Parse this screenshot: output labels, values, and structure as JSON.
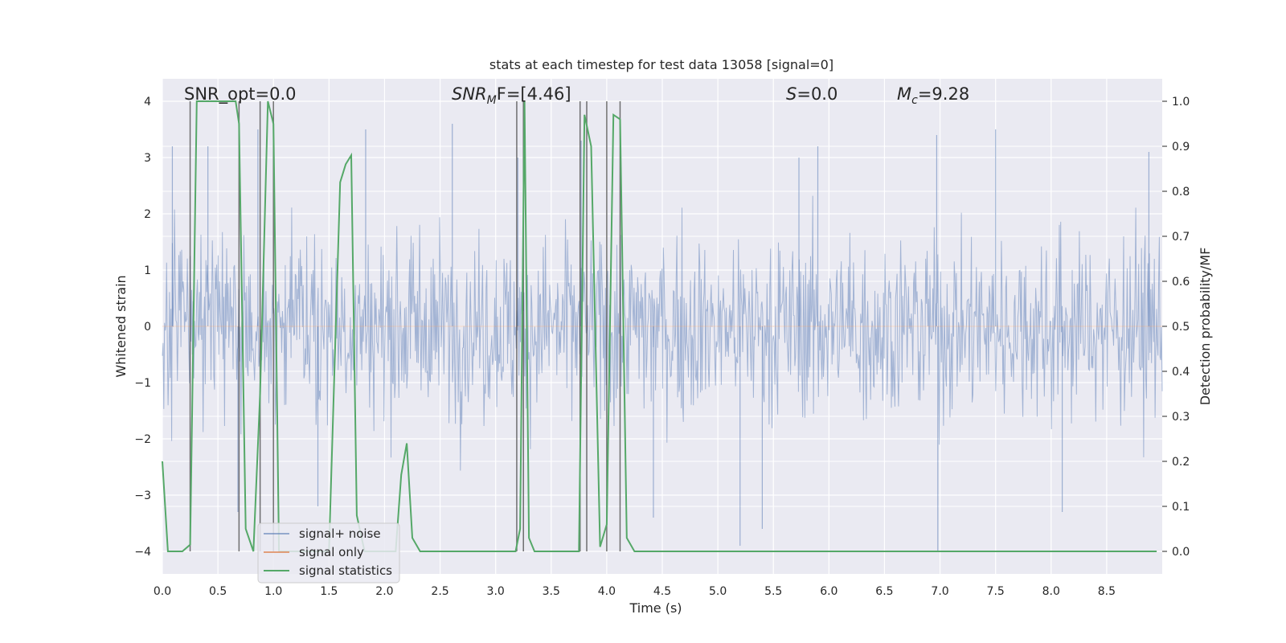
{
  "chart_data": {
    "type": "line",
    "title": "stats at each timestep for test data 13058 [signal=0]",
    "xlabel": "Time (s)",
    "ylabel": "Whitened strain",
    "ylabel_right": "Detection probability/MF",
    "xlim": [
      0.0,
      9.0
    ],
    "ylim": [
      -4.4,
      4.4
    ],
    "ylim_right": [
      -0.05,
      1.05
    ],
    "x_ticks": [
      "0.0",
      "0.5",
      "1.0",
      "1.5",
      "2.0",
      "2.5",
      "3.0",
      "3.5",
      "4.0",
      "4.5",
      "5.0",
      "5.5",
      "6.0",
      "6.5",
      "7.0",
      "7.5",
      "8.0",
      "8.5"
    ],
    "y_ticks": [
      "4",
      "3",
      "2",
      "1",
      "0",
      "−1",
      "−2",
      "−3",
      "−4"
    ],
    "y_ticks_right": [
      "1.0",
      "0.9",
      "0.8",
      "0.7",
      "0.6",
      "0.5",
      "0.4",
      "0.3",
      "0.2",
      "0.1",
      "0.0"
    ],
    "annotations": {
      "snr_opt": "SNR_opt=0.0",
      "snr_mf_main": "SNR",
      "snr_mf_sub": "M",
      "snr_mf_rest": "F=[4.46]",
      "s_main": "S",
      "s_rest": "=0.0",
      "mc_main": "M",
      "mc_sub": "c",
      "mc_rest": "=9.28"
    },
    "legend": {
      "position": "lower-left",
      "entries": [
        "signal+ noise",
        "signal only",
        "signal statistics"
      ]
    },
    "series": [
      {
        "name": "signal+ noise",
        "color": "#4c72b0",
        "description": "whitened noise, approx. Gaussian, std ~1",
        "typical_extent": [
          -2.0,
          2.0
        ],
        "peaks": [
          {
            "t": 0.09,
            "v": 3.2
          },
          {
            "t": 0.41,
            "v": 3.2
          },
          {
            "t": 0.86,
            "v": 3.5
          },
          {
            "t": 1.83,
            "v": 3.5
          },
          {
            "t": 2.61,
            "v": 3.6
          },
          {
            "t": 3.2,
            "v": 3.0
          },
          {
            "t": 3.77,
            "v": 3.3
          },
          {
            "t": 5.73,
            "v": 3.0
          },
          {
            "t": 5.9,
            "v": 3.2
          },
          {
            "t": 6.97,
            "v": 3.4
          },
          {
            "t": 7.5,
            "v": 3.5
          },
          {
            "t": 8.88,
            "v": 3.1
          }
        ],
        "troughs": [
          {
            "t": 0.68,
            "v": -3.3
          },
          {
            "t": 1.4,
            "v": -3.2
          },
          {
            "t": 4.42,
            "v": -3.4
          },
          {
            "t": 5.2,
            "v": -3.9
          },
          {
            "t": 5.4,
            "v": -3.6
          },
          {
            "t": 6.98,
            "v": -4.0
          },
          {
            "t": 8.1,
            "v": -3.3
          }
        ]
      },
      {
        "name": "signal only",
        "color": "#dd8452",
        "values": "0 everywhere (signal=0)"
      },
      {
        "name": "signal statistics",
        "color": "#55a868",
        "axis": "right",
        "x": [
          0.0,
          0.05,
          0.18,
          0.25,
          0.31,
          0.42,
          0.55,
          0.66,
          0.69,
          0.75,
          0.82,
          0.88,
          0.95,
          1.0,
          1.05,
          1.1,
          1.3,
          1.5,
          1.6,
          1.65,
          1.7,
          1.75,
          1.82,
          2.0,
          2.1,
          2.15,
          2.2,
          2.25,
          2.32,
          3.0,
          3.18,
          3.22,
          3.26,
          3.3,
          3.35,
          3.5,
          3.75,
          3.8,
          3.86,
          3.94,
          4.0,
          4.06,
          4.12,
          4.18,
          4.25,
          8.95
        ],
        "values": [
          0.2,
          0.0,
          0.0,
          0.015,
          1.0,
          1.0,
          1.0,
          1.0,
          0.95,
          0.05,
          0.0,
          0.35,
          1.0,
          0.95,
          0.0,
          0.0,
          0.0,
          0.0,
          0.82,
          0.86,
          0.88,
          0.08,
          0.0,
          0.0,
          0.0,
          0.17,
          0.24,
          0.03,
          0.0,
          0.0,
          0.0,
          0.05,
          1.0,
          0.03,
          0.0,
          0.0,
          0.0,
          0.97,
          0.9,
          0.01,
          0.06,
          0.97,
          0.96,
          0.03,
          0.0,
          0.0
        ]
      }
    ],
    "vertical_markers_seconds": [
      0.25,
      0.69,
      0.88,
      1.0,
      3.19,
      3.25,
      3.76,
      3.82,
      4.0,
      4.12
    ]
  }
}
